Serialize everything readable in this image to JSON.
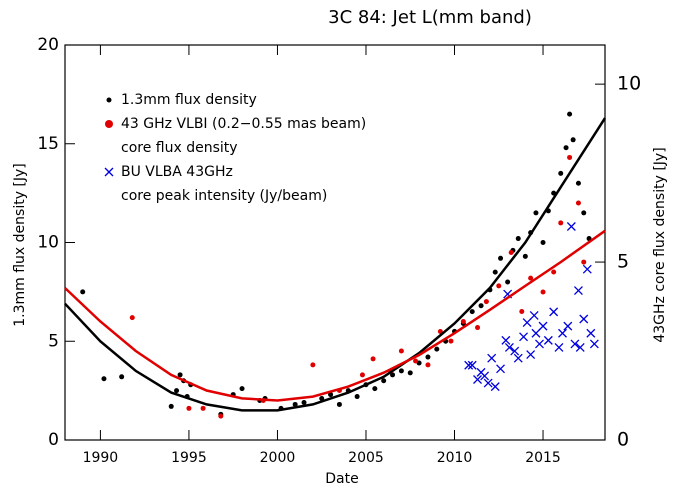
{
  "chart_data": {
    "type": "scatter",
    "title": "3C 84: Jet L(mm band)",
    "x_label": "Date",
    "y_label": "1.3mm flux density [Jy]",
    "y2_label": "43GHz core flux density [Jy]",
    "xlim": [
      1988,
      2018.5
    ],
    "xticks": [
      1990,
      1995,
      2000,
      2005,
      2010,
      2015
    ],
    "ylim": [
      0,
      20
    ],
    "yticks": [
      0,
      5,
      10,
      15,
      20
    ],
    "y2lim": [
      0,
      11.1
    ],
    "y2ticks": [
      0,
      5,
      10
    ],
    "legend": "upper left",
    "series": [
      {
        "name": "1.3mm flux density",
        "color": "#000000",
        "marker": "dot",
        "x": [
          1989.0,
          1990.2,
          1991.2,
          1994.0,
          1994.3,
          1994.5,
          1994.7,
          1994.9,
          1995.1,
          1996.8,
          1997.5,
          1998.0,
          1999.0,
          1999.3,
          2000.2,
          2001.0,
          2001.5,
          2002.5,
          2003.0,
          2003.5,
          2004.0,
          2004.5,
          2005.0,
          2005.5,
          2006.0,
          2006.5,
          2007.0,
          2007.5,
          2008.0,
          2008.5,
          2009.0,
          2009.5,
          2010.0,
          2010.5,
          2011.0,
          2011.5,
          2012.0,
          2012.3,
          2012.6,
          2013.0,
          2013.3,
          2013.6,
          2014.0,
          2014.3,
          2014.6,
          2015.0,
          2015.3,
          2015.6,
          2016.0,
          2016.3,
          2016.5,
          2016.7,
          2017.0,
          2017.3,
          2017.6
        ],
        "values": [
          7.5,
          3.1,
          3.2,
          1.7,
          2.5,
          3.3,
          3.0,
          2.2,
          2.8,
          1.3,
          2.3,
          2.6,
          2.0,
          2.1,
          1.6,
          1.8,
          1.9,
          2.1,
          2.3,
          1.8,
          2.5,
          2.2,
          2.8,
          2.6,
          3.0,
          3.3,
          3.5,
          3.4,
          3.9,
          4.2,
          4.6,
          5.0,
          5.5,
          5.9,
          6.5,
          6.8,
          7.6,
          8.5,
          9.2,
          8.0,
          9.6,
          10.2,
          9.3,
          10.5,
          11.5,
          10.0,
          11.6,
          12.5,
          13.5,
          14.8,
          16.5,
          15.2,
          13.0,
          11.5,
          10.2
        ]
      },
      {
        "name": "43 GHz VLBI (0.2−0.55 mas beam)\ncore flux density",
        "color": "#e00000",
        "marker": "dot",
        "axis": "y2",
        "x": [
          1991.8,
          1995.0,
          1995.8,
          1996.8,
          1999.2,
          2002.0,
          2003.5,
          2004.8,
          2005.4,
          2006.4,
          2007.0,
          2007.8,
          2008.5,
          2009.2,
          2009.8,
          2010.5,
          2011.3,
          2011.8,
          2012.5,
          2013.2,
          2013.8,
          2014.3,
          2015.0,
          2015.6,
          2016.0,
          2016.5,
          2017.0,
          2017.3
        ],
        "values": [
          3.44,
          0.89,
          0.89,
          0.67,
          1.11,
          2.11,
          1.39,
          1.83,
          2.28,
          1.94,
          2.5,
          2.22,
          2.11,
          3.05,
          2.78,
          3.33,
          3.16,
          3.89,
          4.33,
          5.27,
          3.61,
          4.55,
          4.16,
          4.72,
          6.1,
          7.94,
          6.66,
          5.0
        ]
      },
      {
        "name": "BU VLBA 43GHz\ncore peak intensity (Jy/beam)",
        "color": "#0000e0",
        "marker": "cross",
        "axis": "y2",
        "x": [
          2010.8,
          2011.0,
          2011.3,
          2011.5,
          2011.7,
          2011.9,
          2012.1,
          2012.3,
          2012.6,
          2012.9,
          2013.1,
          2013.4,
          2013.6,
          2013.9,
          2014.1,
          2014.3,
          2014.6,
          2014.8,
          2015.0,
          2015.3,
          2015.6,
          2015.9,
          2016.1,
          2016.4,
          2016.6,
          2016.8,
          2017.0,
          2017.1,
          2017.3,
          2017.5,
          2017.7,
          2017.9,
          2013.0,
          2014.5
        ],
        "values": [
          2.1,
          2.1,
          1.7,
          1.9,
          1.8,
          1.6,
          2.3,
          1.5,
          2.0,
          2.8,
          2.6,
          2.5,
          2.3,
          2.9,
          3.3,
          2.4,
          3.0,
          2.7,
          3.2,
          2.8,
          3.6,
          2.6,
          3.0,
          3.2,
          6.0,
          2.7,
          4.2,
          2.6,
          3.4,
          4.8,
          3.0,
          2.7,
          4.1,
          3.5
        ]
      },
      {
        "color": "#000000",
        "marker": "line",
        "x": [
          1988,
          1990,
          1992,
          1994,
          1996,
          1998,
          2000,
          2002,
          2004,
          2006,
          2008,
          2010,
          2012,
          2014,
          2016,
          2018.5
        ],
        "values": [
          6.9,
          5.0,
          3.5,
          2.4,
          1.8,
          1.5,
          1.5,
          1.8,
          2.4,
          3.2,
          4.4,
          5.9,
          7.7,
          10.0,
          12.8,
          16.3
        ]
      },
      {
        "color": "#e00000",
        "marker": "line",
        "axis": "y2",
        "x": [
          1988,
          1990,
          1992,
          1994,
          1996,
          1998,
          2000,
          2002,
          2004,
          2006,
          2008,
          2010,
          2012,
          2014,
          2016,
          2018.5
        ],
        "values": [
          4.27,
          3.33,
          2.5,
          1.83,
          1.39,
          1.17,
          1.11,
          1.22,
          1.5,
          1.89,
          2.39,
          3.0,
          3.66,
          4.33,
          5.0,
          5.88
        ]
      }
    ]
  }
}
